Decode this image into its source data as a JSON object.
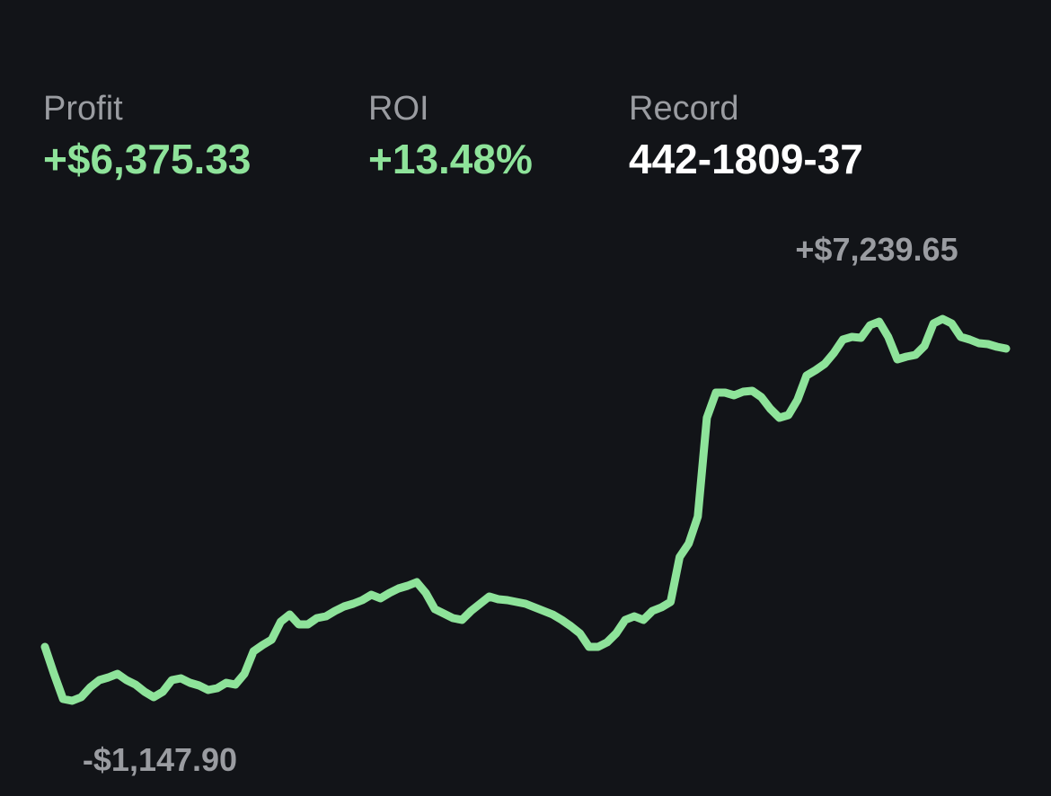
{
  "stats": [
    {
      "label": "Profit",
      "value": "+$6,375.33"
    },
    {
      "label": "ROI",
      "value": "+13.48%"
    },
    {
      "label": "Record",
      "value": "442-1809-37"
    }
  ],
  "chart_data": {
    "type": "line",
    "color": "#8ee39a",
    "max_label": {
      "value": 7239.65,
      "label": "+$7,239.65"
    },
    "min_label": {
      "value": -1147.9,
      "label": "-$1,147.90"
    },
    "values": [
      36,
      -556,
      -1108,
      -1147.9,
      -1069,
      -852,
      -694,
      -635,
      -556,
      -694,
      -793,
      -951,
      -1069,
      -951,
      -694,
      -655,
      -753,
      -812,
      -911,
      -872,
      -753,
      -793,
      -556,
      -62,
      76,
      194,
      589,
      747,
      530,
      530,
      668,
      707,
      826,
      924,
      984,
      1062,
      1181,
      1102,
      1220,
      1319,
      1378,
      1457,
      1220,
      865,
      766,
      668,
      628,
      826,
      984,
      1141,
      1082,
      1062,
      1023,
      984,
      905,
      826,
      747,
      628,
      490,
      332,
      36,
      36,
      135,
      332,
      628,
      707,
      628,
      826,
      905,
      1023,
      2010,
      2306,
      2898,
      5069,
      5621,
      5621,
      5562,
      5641,
      5661,
      5523,
      5266,
      5069,
      5128,
      5463,
      5996,
      6115,
      6253,
      6490,
      6786,
      6845,
      6825,
      7102,
      7180,
      6845,
      6352,
      6411,
      6450,
      6648,
      7141,
      7239.65,
      7141,
      6845,
      6786,
      6707,
      6687,
      6628,
      6588
    ]
  }
}
